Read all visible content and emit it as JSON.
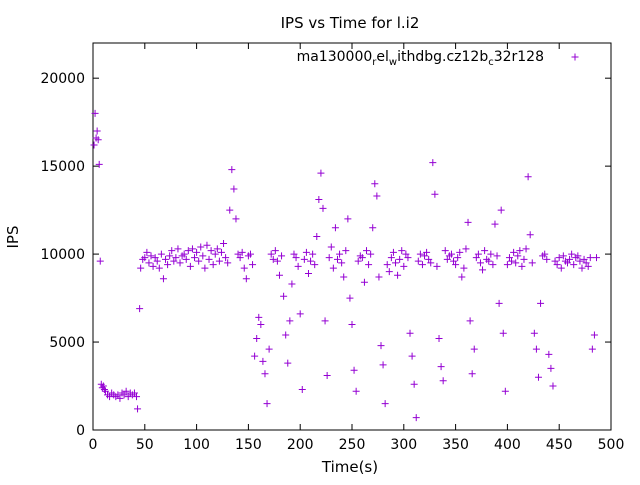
{
  "chart_data": {
    "type": "scatter",
    "title": "IPS vs Time for l.i2",
    "xlabel": "Time(s)",
    "ylabel": "IPS",
    "xlim": [
      0,
      500
    ],
    "ylim": [
      0,
      22000
    ],
    "x_ticks": [
      0,
      50,
      100,
      150,
      200,
      250,
      300,
      350,
      400,
      450,
      500
    ],
    "y_ticks": [
      0,
      5000,
      10000,
      15000,
      20000
    ],
    "grid": false,
    "legend_position": "top-right",
    "marker": "+",
    "series": [
      {
        "name_parts": [
          "ma130000",
          "r",
          "el",
          "w",
          "ithdbg.cz12b",
          "c",
          "32r128"
        ],
        "color": "#9400d3",
        "points": [
          [
            1,
            16200
          ],
          [
            2,
            18000
          ],
          [
            3,
            16600
          ],
          [
            4,
            17000
          ],
          [
            5,
            16500
          ],
          [
            6,
            15100
          ],
          [
            7,
            9600
          ],
          [
            8,
            2600
          ],
          [
            9,
            2400
          ],
          [
            10,
            2500
          ],
          [
            11,
            2300
          ],
          [
            12,
            2200
          ],
          [
            14,
            2000
          ],
          [
            16,
            1900
          ],
          [
            18,
            2100
          ],
          [
            20,
            2000
          ],
          [
            22,
            1900
          ],
          [
            24,
            2000
          ],
          [
            26,
            1800
          ],
          [
            28,
            2100
          ],
          [
            30,
            2000
          ],
          [
            32,
            2200
          ],
          [
            34,
            1900
          ],
          [
            36,
            2100
          ],
          [
            38,
            2000
          ],
          [
            40,
            2100
          ],
          [
            42,
            1900
          ],
          [
            43,
            1200
          ],
          [
            45,
            6900
          ],
          [
            46,
            9200
          ],
          [
            48,
            9700
          ],
          [
            50,
            9800
          ],
          [
            52,
            10100
          ],
          [
            54,
            9500
          ],
          [
            56,
            9900
          ],
          [
            58,
            9300
          ],
          [
            60,
            9800
          ],
          [
            62,
            9600
          ],
          [
            64,
            9200
          ],
          [
            66,
            10000
          ],
          [
            68,
            8600
          ],
          [
            70,
            9700
          ],
          [
            72,
            9400
          ],
          [
            74,
            9900
          ],
          [
            76,
            10200
          ],
          [
            78,
            9600
          ],
          [
            80,
            9800
          ],
          [
            82,
            10300
          ],
          [
            84,
            9500
          ],
          [
            86,
            9900
          ],
          [
            88,
            10000
          ],
          [
            90,
            9700
          ],
          [
            92,
            10200
          ],
          [
            94,
            9300
          ],
          [
            96,
            10300
          ],
          [
            98,
            9800
          ],
          [
            100,
            10100
          ],
          [
            102,
            9600
          ],
          [
            104,
            10400
          ],
          [
            106,
            9900
          ],
          [
            108,
            9200
          ],
          [
            110,
            10500
          ],
          [
            112,
            9700
          ],
          [
            114,
            10200
          ],
          [
            116,
            9400
          ],
          [
            118,
            10000
          ],
          [
            120,
            10300
          ],
          [
            122,
            9600
          ],
          [
            124,
            10100
          ],
          [
            126,
            10600
          ],
          [
            128,
            9800
          ],
          [
            130,
            9500
          ],
          [
            132,
            12500
          ],
          [
            134,
            14800
          ],
          [
            136,
            13700
          ],
          [
            138,
            12000
          ],
          [
            140,
            10000
          ],
          [
            142,
            9800
          ],
          [
            144,
            10100
          ],
          [
            146,
            9200
          ],
          [
            148,
            8600
          ],
          [
            150,
            9900
          ],
          [
            152,
            10000
          ],
          [
            154,
            9400
          ],
          [
            156,
            4200
          ],
          [
            158,
            5200
          ],
          [
            160,
            6400
          ],
          [
            162,
            6000
          ],
          [
            164,
            3900
          ],
          [
            166,
            3200
          ],
          [
            168,
            1500
          ],
          [
            170,
            4600
          ],
          [
            172,
            10000
          ],
          [
            174,
            9700
          ],
          [
            176,
            10200
          ],
          [
            178,
            9600
          ],
          [
            180,
            8800
          ],
          [
            182,
            9900
          ],
          [
            184,
            7600
          ],
          [
            186,
            5400
          ],
          [
            188,
            3800
          ],
          [
            190,
            6200
          ],
          [
            192,
            8300
          ],
          [
            194,
            10000
          ],
          [
            196,
            9800
          ],
          [
            198,
            9300
          ],
          [
            200,
            6600
          ],
          [
            202,
            2300
          ],
          [
            204,
            9700
          ],
          [
            206,
            10100
          ],
          [
            208,
            8900
          ],
          [
            210,
            9600
          ],
          [
            212,
            10000
          ],
          [
            214,
            9400
          ],
          [
            216,
            11000
          ],
          [
            218,
            13100
          ],
          [
            220,
            14600
          ],
          [
            222,
            12600
          ],
          [
            224,
            6200
          ],
          [
            226,
            3100
          ],
          [
            228,
            9800
          ],
          [
            230,
            10400
          ],
          [
            232,
            9200
          ],
          [
            234,
            11500
          ],
          [
            236,
            9700
          ],
          [
            238,
            10000
          ],
          [
            240,
            9500
          ],
          [
            242,
            8700
          ],
          [
            244,
            10200
          ],
          [
            246,
            12000
          ],
          [
            248,
            7500
          ],
          [
            250,
            6000
          ],
          [
            252,
            3400
          ],
          [
            254,
            2200
          ],
          [
            256,
            9600
          ],
          [
            258,
            9900
          ],
          [
            260,
            9800
          ],
          [
            262,
            8400
          ],
          [
            264,
            10200
          ],
          [
            266,
            9400
          ],
          [
            268,
            10000
          ],
          [
            270,
            11500
          ],
          [
            272,
            14000
          ],
          [
            274,
            13300
          ],
          [
            276,
            8700
          ],
          [
            278,
            4800
          ],
          [
            280,
            3700
          ],
          [
            282,
            1500
          ],
          [
            284,
            9400
          ],
          [
            286,
            9000
          ],
          [
            288,
            9800
          ],
          [
            290,
            10100
          ],
          [
            292,
            9500
          ],
          [
            294,
            8800
          ],
          [
            296,
            9700
          ],
          [
            298,
            10200
          ],
          [
            300,
            9300
          ],
          [
            302,
            10000
          ],
          [
            304,
            9800
          ],
          [
            306,
            5500
          ],
          [
            308,
            4200
          ],
          [
            310,
            2600
          ],
          [
            312,
            700
          ],
          [
            314,
            9600
          ],
          [
            316,
            10000
          ],
          [
            318,
            9400
          ],
          [
            320,
            9900
          ],
          [
            322,
            10100
          ],
          [
            324,
            9700
          ],
          [
            326,
            9500
          ],
          [
            328,
            15200
          ],
          [
            330,
            13400
          ],
          [
            332,
            9300
          ],
          [
            334,
            5200
          ],
          [
            336,
            3600
          ],
          [
            338,
            2800
          ],
          [
            340,
            10200
          ],
          [
            342,
            9700
          ],
          [
            344,
            9900
          ],
          [
            346,
            10000
          ],
          [
            348,
            9600
          ],
          [
            350,
            9400
          ],
          [
            352,
            9800
          ],
          [
            354,
            10100
          ],
          [
            356,
            8700
          ],
          [
            358,
            9200
          ],
          [
            360,
            10300
          ],
          [
            362,
            11800
          ],
          [
            364,
            6200
          ],
          [
            366,
            3200
          ],
          [
            368,
            4600
          ],
          [
            370,
            9800
          ],
          [
            372,
            10000
          ],
          [
            374,
            9500
          ],
          [
            376,
            9100
          ],
          [
            378,
            10200
          ],
          [
            380,
            9700
          ],
          [
            382,
            9600
          ],
          [
            384,
            10000
          ],
          [
            386,
            9400
          ],
          [
            388,
            11700
          ],
          [
            390,
            9900
          ],
          [
            392,
            7200
          ],
          [
            394,
            12500
          ],
          [
            396,
            5500
          ],
          [
            398,
            2200
          ],
          [
            400,
            9400
          ],
          [
            402,
            9800
          ],
          [
            404,
            9600
          ],
          [
            406,
            10100
          ],
          [
            408,
            9500
          ],
          [
            410,
            9900
          ],
          [
            412,
            10200
          ],
          [
            414,
            9300
          ],
          [
            416,
            9700
          ],
          [
            418,
            10300
          ],
          [
            420,
            14400
          ],
          [
            422,
            11100
          ],
          [
            424,
            9500
          ],
          [
            426,
            5500
          ],
          [
            428,
            4600
          ],
          [
            430,
            3000
          ],
          [
            432,
            7200
          ],
          [
            434,
            9900
          ],
          [
            436,
            10000
          ],
          [
            438,
            9700
          ],
          [
            440,
            4300
          ],
          [
            442,
            3500
          ],
          [
            444,
            2500
          ],
          [
            446,
            9600
          ],
          [
            448,
            9400
          ],
          [
            450,
            9800
          ],
          [
            452,
            9200
          ],
          [
            454,
            9900
          ],
          [
            456,
            9600
          ],
          [
            458,
            9500
          ],
          [
            460,
            9700
          ],
          [
            462,
            10000
          ],
          [
            464,
            9400
          ],
          [
            466,
            9800
          ],
          [
            468,
            9900
          ],
          [
            470,
            9600
          ],
          [
            472,
            9200
          ],
          [
            474,
            9700
          ],
          [
            476,
            9500
          ],
          [
            478,
            9300
          ],
          [
            480,
            9800
          ],
          [
            482,
            4600
          ],
          [
            484,
            5400
          ],
          [
            486,
            9800
          ]
        ]
      }
    ]
  }
}
